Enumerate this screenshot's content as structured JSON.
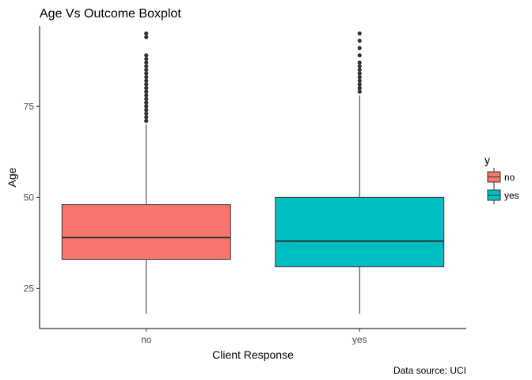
{
  "chart_data": {
    "type": "boxplot",
    "title": "Age Vs Outcome Boxplot",
    "xlabel": "Client Response",
    "ylabel": "Age",
    "caption": "Data source: UCI",
    "categories": [
      "no",
      "yes"
    ],
    "ylim": [
      14,
      97
    ],
    "yticks": [
      25,
      50,
      75
    ],
    "grid": false,
    "legend": {
      "title": "y",
      "position": "right",
      "entries": [
        {
          "label": "no",
          "color": "#F8766D"
        },
        {
          "label": "yes",
          "color": "#00BFC4"
        }
      ]
    },
    "boxes": [
      {
        "category": "no",
        "color": "#F8766D",
        "min": 18,
        "q1": 33,
        "median": 39,
        "q3": 48,
        "whisker_high": 70,
        "outliers": [
          71,
          72,
          73,
          74,
          75,
          76,
          77,
          78,
          79,
          80,
          81,
          82,
          83,
          84,
          85,
          86,
          87,
          88,
          89,
          94,
          95
        ]
      },
      {
        "category": "yes",
        "color": "#00BFC4",
        "min": 18,
        "q1": 31,
        "median": 38,
        "q3": 50,
        "whisker_high": 78,
        "outliers": [
          79,
          80,
          81,
          82,
          83,
          84,
          85,
          86,
          87,
          89,
          91,
          93,
          95
        ]
      }
    ]
  }
}
